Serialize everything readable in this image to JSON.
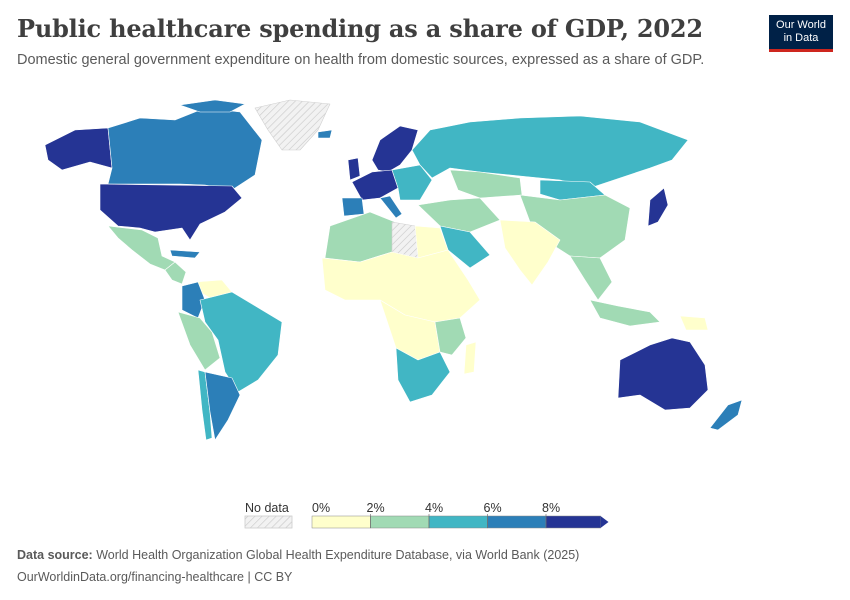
{
  "header": {
    "title": "Public healthcare spending as a share of GDP, 2022",
    "subtitle": "Domestic general government expenditure on health from domestic sources, expressed as a share of GDP."
  },
  "logo": {
    "line1": "Our World",
    "line2": "in Data"
  },
  "legend": {
    "no_data_label": "No data",
    "ticks": [
      "0%",
      "2%",
      "4%",
      "6%",
      "8%"
    ],
    "bins": [
      {
        "from": 0,
        "to": 2,
        "color": "#ffffcc"
      },
      {
        "from": 2,
        "to": 4,
        "color": "#a1dab4"
      },
      {
        "from": 4,
        "to": 6,
        "color": "#41b6c4"
      },
      {
        "from": 6,
        "to": 8,
        "color": "#2c7fb8"
      },
      {
        "from": 8,
        "to": null,
        "color": "#253494"
      }
    ],
    "no_data_color": "#e8e8e8"
  },
  "footer": {
    "source_label": "Data source:",
    "source_text": "World Health Organization Global Health Expenditure Database, via World Bank (2025)",
    "url": "OurWorldinData.org/financing-healthcare",
    "license": "CC BY"
  },
  "map_regions": [
    {
      "name": "USA",
      "bin": 4
    },
    {
      "name": "Canada",
      "bin": 3
    },
    {
      "name": "Alaska",
      "bin": 4
    },
    {
      "name": "Greenland",
      "bin": -1
    },
    {
      "name": "Mexico",
      "bin": 1
    },
    {
      "name": "Central America",
      "bin": 1
    },
    {
      "name": "Cuba",
      "bin": 3
    },
    {
      "name": "Colombia",
      "bin": 3
    },
    {
      "name": "Venezuela",
      "bin": 0
    },
    {
      "name": "Brazil",
      "bin": 2
    },
    {
      "name": "Peru/Bolivia",
      "bin": 1
    },
    {
      "name": "Argentina",
      "bin": 3
    },
    {
      "name": "Chile",
      "bin": 2
    },
    {
      "name": "Western Europe",
      "bin": 4
    },
    {
      "name": "Scandinavia",
      "bin": 4
    },
    {
      "name": "Iberia",
      "bin": 3
    },
    {
      "name": "Eastern Europe",
      "bin": 2
    },
    {
      "name": "Russia",
      "bin": 2
    },
    {
      "name": "Kazakhstan",
      "bin": 1
    },
    {
      "name": "China",
      "bin": 1
    },
    {
      "name": "Mongolia",
      "bin": 2
    },
    {
      "name": "Japan",
      "bin": 4
    },
    {
      "name": "India",
      "bin": 0
    },
    {
      "name": "Saudi Arabia",
      "bin": 2
    },
    {
      "name": "Middle East",
      "bin": 1
    },
    {
      "name": "North Africa",
      "bin": 1
    },
    {
      "name": "Libya",
      "bin": -1
    },
    {
      "name": "Sahel",
      "bin": 0
    },
    {
      "name": "Central Africa",
      "bin": 0
    },
    {
      "name": "East Africa",
      "bin": 0
    },
    {
      "name": "Southern Africa",
      "bin": 2
    },
    {
      "name": "Madagascar",
      "bin": 0
    },
    {
      "name": "Southeast Asia",
      "bin": 1
    },
    {
      "name": "Indonesia",
      "bin": 1
    },
    {
      "name": "Papua New Guinea",
      "bin": 0
    },
    {
      "name": "Australia",
      "bin": 4
    },
    {
      "name": "New Zealand",
      "bin": 3
    }
  ]
}
